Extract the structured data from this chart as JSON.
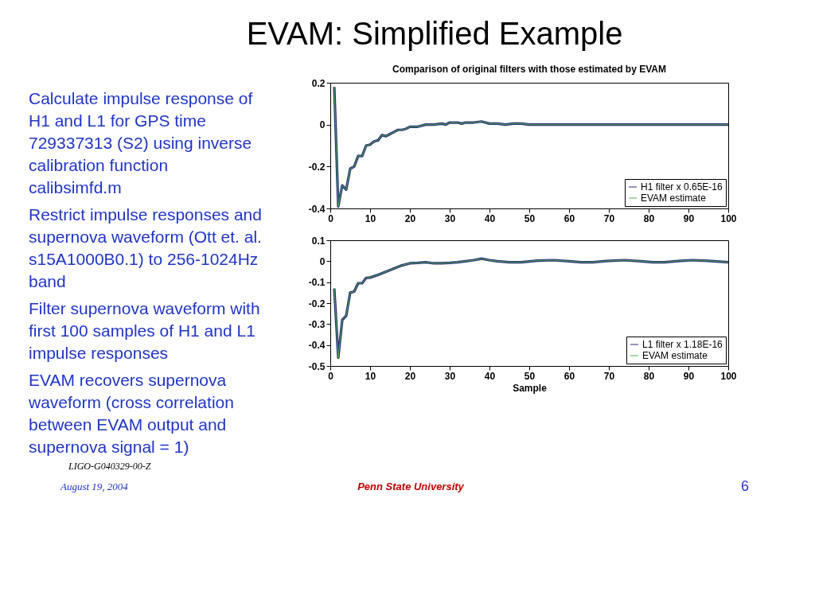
{
  "chart_data": [
    {
      "type": "other",
      "title": "EVAM: Simplified Example",
      "annotations": [
        "Calculate impulse response of H1 and L1 for GPS time 729337313 (S2) using inverse calibration function calibsimfd.m",
        "Restrict impulse responses and supernova waveform (Ott et. al. s15A1000B0.1) to 256-1024Hz band",
        "Filter supernova waveform with first 100 samples of H1 and L1 impulse responses",
        "EVAM recovers supernova waveform (cross correlation between EVAM output and supernova signal = 1)",
        "LIGO-G040329-00-Z",
        "August 19, 2004",
        "Penn State University",
        "6"
      ]
    },
    {
      "type": "line",
      "title": "Comparison of original filters with those estimated by EVAM",
      "x": [
        1,
        2,
        3,
        4,
        5,
        6,
        7,
        8,
        9,
        10,
        11,
        12,
        13,
        14,
        15,
        16,
        17,
        18,
        19,
        20,
        22,
        24,
        26,
        28,
        29,
        30,
        32,
        33,
        34,
        36,
        38,
        40,
        42,
        44,
        46,
        48,
        50,
        60,
        70,
        80,
        90,
        100
      ],
      "series": [
        {
          "name": "H1 filter x 0.65E-16",
          "color": "#2b2b7a",
          "values": [
            0.18,
            -0.39,
            -0.29,
            -0.31,
            -0.21,
            -0.2,
            -0.15,
            -0.15,
            -0.1,
            -0.095,
            -0.08,
            -0.075,
            -0.05,
            -0.055,
            -0.045,
            -0.035,
            -0.025,
            -0.025,
            -0.02,
            -0.01,
            -0.01,
            0,
            0,
            0.005,
            0,
            0.01,
            0.01,
            0.005,
            0.01,
            0.01,
            0.015,
            0.005,
            0.005,
            0,
            0.005,
            0.005,
            0,
            0,
            0,
            0,
            0,
            0
          ]
        },
        {
          "name": "EVAM estimate",
          "color": "#4caf50",
          "values": [
            0.18,
            -0.39,
            -0.29,
            -0.31,
            -0.21,
            -0.2,
            -0.15,
            -0.15,
            -0.1,
            -0.095,
            -0.08,
            -0.075,
            -0.05,
            -0.055,
            -0.045,
            -0.035,
            -0.025,
            -0.025,
            -0.02,
            -0.01,
            -0.01,
            0,
            0,
            0.005,
            0,
            0.01,
            0.01,
            0.005,
            0.01,
            0.01,
            0.015,
            0.005,
            0.005,
            0,
            0.005,
            0.005,
            0,
            0,
            0,
            0,
            0,
            0
          ]
        }
      ],
      "xlim": [
        0,
        100
      ],
      "xticks": [
        0,
        10,
        20,
        30,
        40,
        50,
        60,
        70,
        80,
        90,
        100
      ],
      "ylim": [
        -0.4,
        0.2
      ],
      "yticks": [
        -0.4,
        -0.2,
        0,
        0.2
      ],
      "legend": "bottom right",
      "grid": false
    },
    {
      "type": "line",
      "xlabel": "Sample",
      "x": [
        1,
        2,
        3,
        4,
        5,
        6,
        7,
        8,
        9,
        10,
        12,
        14,
        16,
        18,
        20,
        22,
        24,
        26,
        28,
        30,
        32,
        34,
        36,
        38,
        40,
        42,
        45,
        48,
        52,
        56,
        60,
        63,
        66,
        70,
        74,
        78,
        81,
        84,
        88,
        91,
        95,
        100
      ],
      "series": [
        {
          "name": "L1 filter x 1.18E-16",
          "color": "#2b2b7a",
          "values": [
            -0.13,
            -0.46,
            -0.28,
            -0.26,
            -0.15,
            -0.145,
            -0.105,
            -0.105,
            -0.08,
            -0.078,
            -0.065,
            -0.05,
            -0.035,
            -0.02,
            -0.01,
            -0.008,
            -0.005,
            -0.01,
            -0.01,
            -0.008,
            -0.005,
            0,
            0.005,
            0.012,
            0.005,
            0,
            -0.005,
            -0.005,
            0.003,
            0.005,
            0,
            -0.005,
            -0.005,
            0.002,
            0.005,
            0,
            -0.005,
            -0.005,
            0.002,
            0.005,
            0.002,
            -0.005
          ]
        },
        {
          "name": "EVAM estimate",
          "color": "#4caf50",
          "values": [
            -0.13,
            -0.46,
            -0.28,
            -0.26,
            -0.15,
            -0.145,
            -0.105,
            -0.105,
            -0.08,
            -0.078,
            -0.065,
            -0.05,
            -0.035,
            -0.02,
            -0.01,
            -0.008,
            -0.005,
            -0.01,
            -0.01,
            -0.008,
            -0.005,
            0,
            0.005,
            0.012,
            0.005,
            0,
            -0.005,
            -0.005,
            0.003,
            0.005,
            0,
            -0.005,
            -0.005,
            0.002,
            0.005,
            0,
            -0.005,
            -0.005,
            0.002,
            0.005,
            0.002,
            -0.005
          ]
        }
      ],
      "xlim": [
        0,
        100
      ],
      "xticks": [
        0,
        10,
        20,
        30,
        40,
        50,
        60,
        70,
        80,
        90,
        100
      ],
      "ylim": [
        -0.5,
        0.1
      ],
      "yticks": [
        -0.5,
        -0.4,
        -0.3,
        -0.2,
        -0.1,
        0,
        0.1
      ],
      "legend": "bottom right",
      "grid": false
    }
  ]
}
